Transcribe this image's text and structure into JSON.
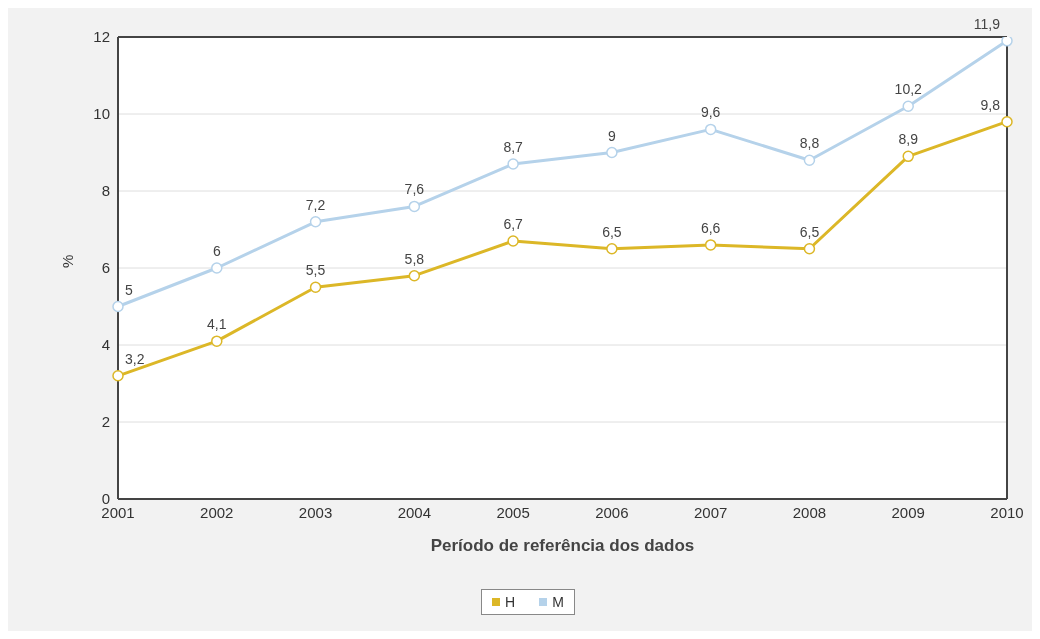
{
  "chart_data": {
    "type": "line",
    "xlabel": "Período de referência dos dados",
    "ylabel": "%",
    "categories": [
      "2001",
      "2002",
      "2003",
      "2004",
      "2005",
      "2006",
      "2007",
      "2008",
      "2009",
      "2010"
    ],
    "series": [
      {
        "name": "H",
        "color": "#dcb727",
        "values": [
          3.2,
          4.1,
          5.5,
          5.8,
          6.7,
          6.5,
          6.6,
          6.5,
          8.9,
          9.8
        ],
        "value_labels": [
          "3,2",
          "4,1",
          "5,5",
          "5,8",
          "6,7",
          "6,5",
          "6,6",
          "6,5",
          "8,9",
          "9,8"
        ]
      },
      {
        "name": "M",
        "color": "#b5d2ea",
        "values": [
          5,
          6,
          7.2,
          7.6,
          8.7,
          9,
          9.6,
          8.8,
          10.2,
          11.9
        ],
        "value_labels": [
          "5",
          "6",
          "7,2",
          "7,6",
          "8,7",
          "9",
          "9,6",
          "8,8",
          "10,2",
          "11,9"
        ]
      }
    ],
    "ylim": [
      0,
      12
    ],
    "yticks": [
      0,
      2,
      4,
      6,
      8,
      10,
      12
    ],
    "grid": "y",
    "legend": "bottom",
    "marker": "circle",
    "line_style": "solid"
  }
}
